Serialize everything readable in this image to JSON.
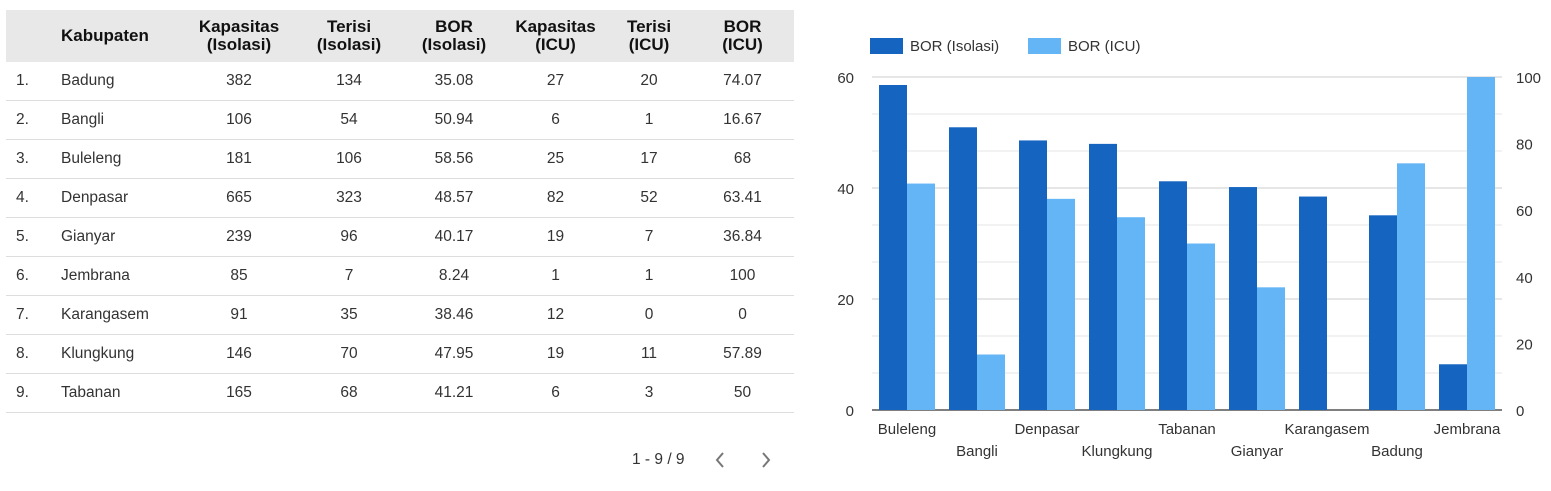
{
  "table": {
    "columns": [
      "",
      "Kabupaten",
      "Kapasitas\n(Isolasi)",
      "Terisi\n(Isolasi)",
      "BOR\n(Isolasi)",
      "Kapasitas\n(ICU)",
      "Terisi\n(ICU)",
      "BOR\n(ICU)"
    ],
    "rows": [
      [
        "1.",
        "Badung",
        "382",
        "134",
        "35.08",
        "27",
        "20",
        "74.07"
      ],
      [
        "2.",
        "Bangli",
        "106",
        "54",
        "50.94",
        "6",
        "1",
        "16.67"
      ],
      [
        "3.",
        "Buleleng",
        "181",
        "106",
        "58.56",
        "25",
        "17",
        "68"
      ],
      [
        "4.",
        "Denpasar",
        "665",
        "323",
        "48.57",
        "82",
        "52",
        "63.41"
      ],
      [
        "5.",
        "Gianyar",
        "239",
        "96",
        "40.17",
        "19",
        "7",
        "36.84"
      ],
      [
        "6.",
        "Jembrana",
        "85",
        "7",
        "8.24",
        "1",
        "1",
        "100"
      ],
      [
        "7.",
        "Karangasem",
        "91",
        "35",
        "38.46",
        "12",
        "0",
        "0"
      ],
      [
        "8.",
        "Klungkung",
        "146",
        "70",
        "47.95",
        "19",
        "11",
        "57.89"
      ],
      [
        "9.",
        "Tabanan",
        "165",
        "68",
        "41.21",
        "6",
        "3",
        "50"
      ]
    ]
  },
  "pagination": {
    "label": "1 - 9 / 9",
    "prev_icon": "chevron-left-icon",
    "next_icon": "chevron-right-icon"
  },
  "chart_data": {
    "type": "bar",
    "categories": [
      "Buleleng",
      "Bangli",
      "Denpasar",
      "Klungkung",
      "Tabanan",
      "Gianyar",
      "Karangasem",
      "Badung",
      "Jembrana"
    ],
    "series": [
      {
        "name": "BOR (Isolasi)",
        "axis": "left",
        "color": "#1565c0",
        "values": [
          58.56,
          50.94,
          48.57,
          47.95,
          41.21,
          40.17,
          38.46,
          35.08,
          8.24
        ]
      },
      {
        "name": "BOR (ICU)",
        "axis": "right",
        "color": "#64b5f6",
        "values": [
          68,
          16.67,
          63.41,
          57.89,
          50,
          36.84,
          0,
          74.07,
          100
        ]
      }
    ],
    "y_left": {
      "range": [
        0,
        60
      ],
      "ticks": [
        "0",
        "20",
        "40",
        "60"
      ]
    },
    "y_right": {
      "range": [
        0,
        100
      ],
      "ticks": [
        "0",
        "20",
        "40",
        "60",
        "80",
        "100"
      ]
    },
    "legend_position": "top-left",
    "grid": true
  }
}
